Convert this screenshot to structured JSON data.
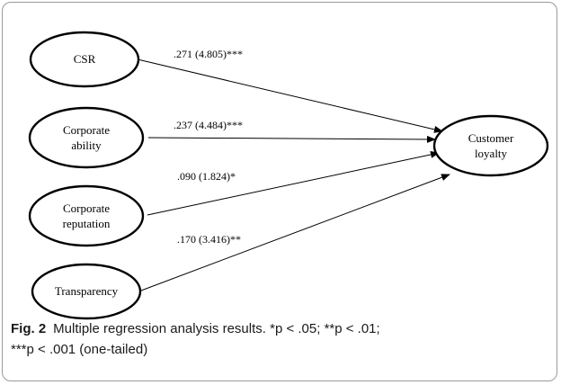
{
  "figure": {
    "label": "Fig. 2",
    "caption_line1": "Multiple regression analysis results. *p < .05; **p < .01;",
    "caption_line2": "***p < .001 (one-tailed)"
  },
  "nodes": {
    "csr": {
      "lines": [
        "CSR"
      ]
    },
    "ability": {
      "lines": [
        "Corporate",
        "ability"
      ]
    },
    "reputation": {
      "lines": [
        "Corporate",
        "reputation"
      ]
    },
    "transparency": {
      "lines": [
        "Transparency"
      ]
    },
    "loyalty": {
      "lines": [
        "Customer",
        "loyalty"
      ]
    }
  },
  "edges": {
    "csr": {
      "label": ".271 (4.805)***"
    },
    "ability": {
      "label": ".237 (4.484)***"
    },
    "reputation": {
      "label": ".090 (1.824)*"
    },
    "transparency": {
      "label": ".170 (3.416)**"
    }
  }
}
